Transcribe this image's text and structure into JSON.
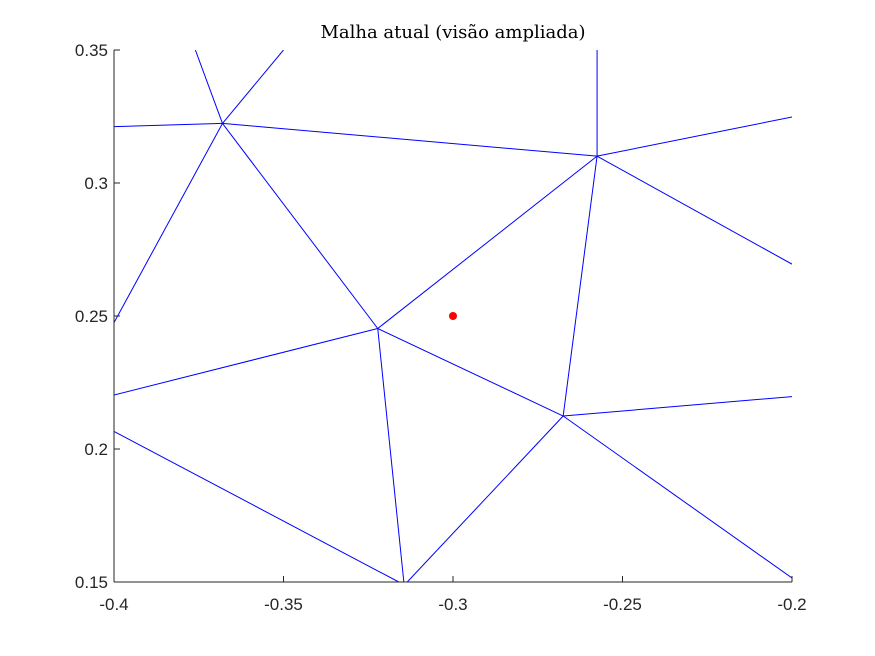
{
  "chart_data": {
    "type": "line",
    "title": "Malha atual (visão ampliada)",
    "xlabel": "",
    "ylabel": "",
    "xlim": [
      -0.4,
      -0.2
    ],
    "ylim": [
      0.15,
      0.35
    ],
    "xticks": [
      -0.4,
      -0.35,
      -0.3,
      -0.25,
      -0.2
    ],
    "xtick_labels": [
      "-0.4",
      "-0.35",
      "-0.3",
      "-0.25",
      "-0.2"
    ],
    "yticks": [
      0.15,
      0.2,
      0.25,
      0.3,
      0.35
    ],
    "ytick_labels": [
      "0.15",
      "0.2",
      "0.25",
      "0.3",
      "0.35"
    ],
    "grid": false,
    "mesh_color": "#0000ff",
    "point_color": "#ff0000",
    "mesh_edges": [
      [
        [
          -0.376,
          0.35
        ],
        [
          -0.368,
          0.3224
        ]
      ],
      [
        [
          -0.368,
          0.3224
        ],
        [
          -0.35,
          0.35
        ]
      ],
      [
        [
          -0.4,
          0.3212
        ],
        [
          -0.368,
          0.3224
        ]
      ],
      [
        [
          -0.368,
          0.3224
        ],
        [
          -0.2575,
          0.3101
        ]
      ],
      [
        [
          -0.368,
          0.3224
        ],
        [
          -0.4,
          0.2475
        ]
      ],
      [
        [
          -0.368,
          0.3224
        ],
        [
          -0.3222,
          0.2453
        ]
      ],
      [
        [
          -0.2575,
          0.35
        ],
        [
          -0.2575,
          0.3101
        ]
      ],
      [
        [
          -0.2575,
          0.3101
        ],
        [
          -0.2,
          0.3248
        ]
      ],
      [
        [
          -0.2575,
          0.3101
        ],
        [
          -0.2,
          0.2695
        ]
      ],
      [
        [
          -0.2575,
          0.3101
        ],
        [
          -0.3222,
          0.2453
        ]
      ],
      [
        [
          -0.2575,
          0.3101
        ],
        [
          -0.2675,
          0.2124
        ]
      ],
      [
        [
          -0.4,
          0.2203
        ],
        [
          -0.3222,
          0.2453
        ]
      ],
      [
        [
          -0.3222,
          0.2453
        ],
        [
          -0.2675,
          0.2124
        ]
      ],
      [
        [
          -0.3222,
          0.2453
        ],
        [
          -0.3145,
          0.15
        ]
      ],
      [
        [
          -0.4,
          0.2066
        ],
        [
          -0.316,
          0.15
        ]
      ],
      [
        [
          -0.3135,
          0.15
        ],
        [
          -0.2675,
          0.2124
        ]
      ],
      [
        [
          -0.2675,
          0.2124
        ],
        [
          -0.2,
          0.2197
        ]
      ],
      [
        [
          -0.2675,
          0.2124
        ],
        [
          -0.2,
          0.1515
        ]
      ]
    ],
    "points": [
      {
        "x": -0.3,
        "y": 0.25
      }
    ]
  }
}
